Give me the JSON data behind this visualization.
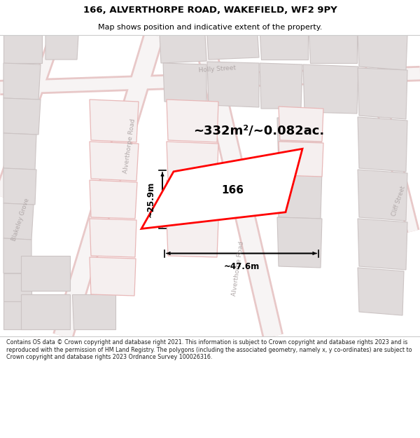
{
  "title": "166, ALVERTHORPE ROAD, WAKEFIELD, WF2 9PY",
  "subtitle": "Map shows position and indicative extent of the property.",
  "footer": "Contains OS data © Crown copyright and database right 2021. This information is subject to Crown copyright and database rights 2023 and is reproduced with the permission of HM Land Registry. The polygons (including the associated geometry, namely x, y co-ordinates) are subject to Crown copyright and database rights 2023 Ordnance Survey 100026316.",
  "area_label": "~332m²/~0.082ac.",
  "width_label": "~47.6m",
  "height_label": "~25.9m",
  "number_label": "166",
  "map_bg": "#f7f4f4",
  "building_fill": "#e0dbdb",
  "building_edge": "#ccc4c4",
  "pink_fill": "#f5efef",
  "pink_edge": "#e8b8b8",
  "road_fill": "#f7f4f4",
  "road_edge": "#e8c8c8",
  "highlight_color": "#ff0000",
  "street_color": "#b0a8a8",
  "black": "#000000",
  "title_color": "#000000",
  "footer_color": "#222222",
  "white": "#ffffff"
}
